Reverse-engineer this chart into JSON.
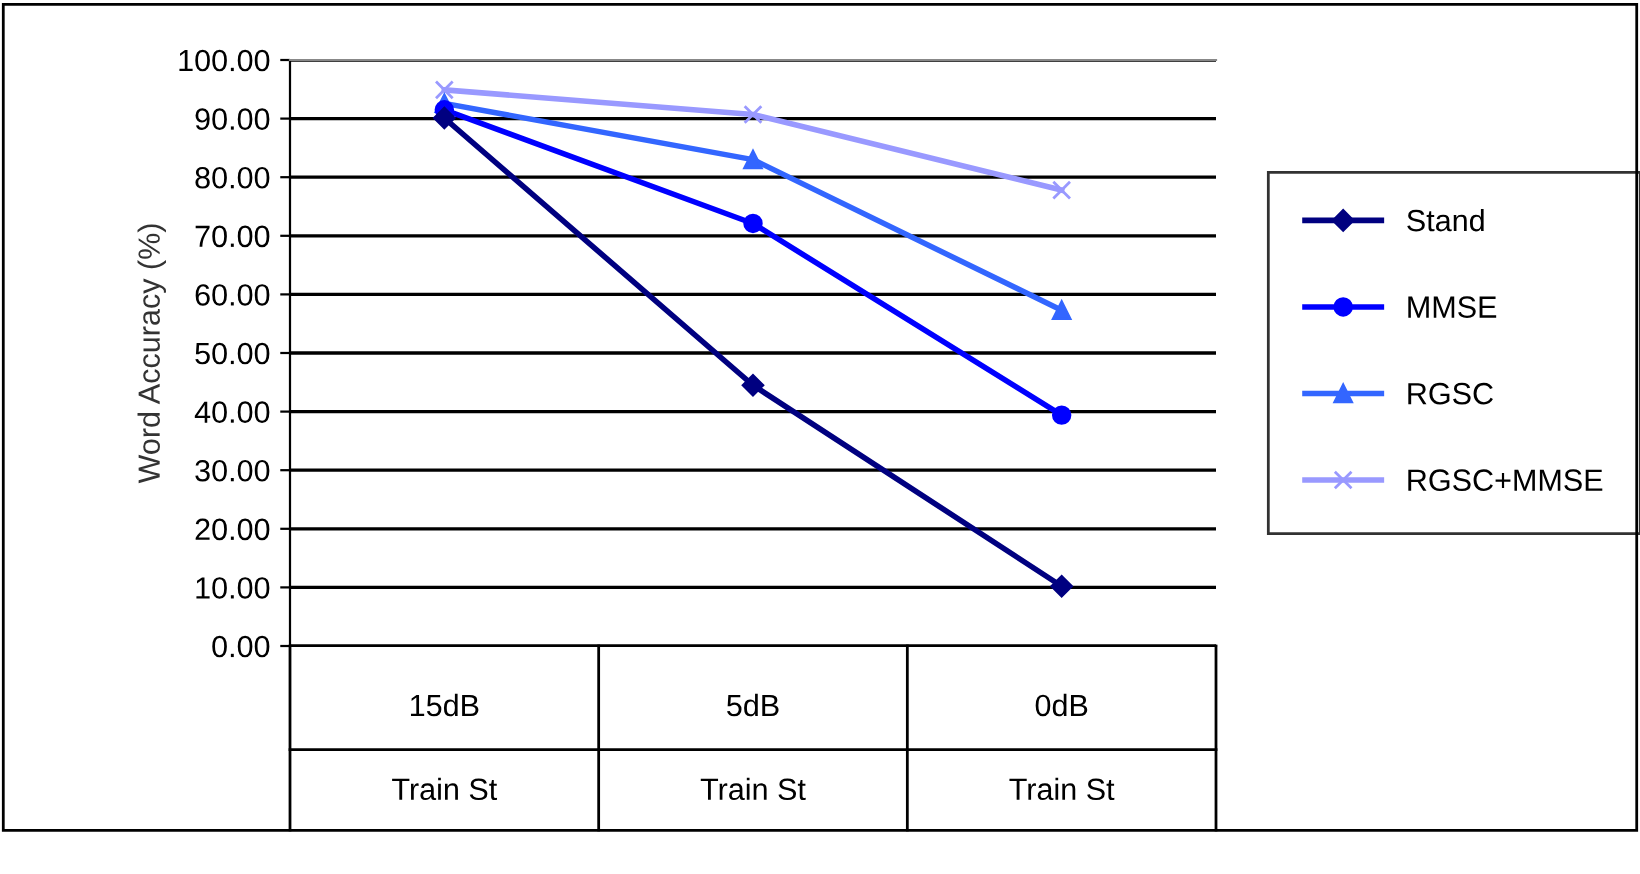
{
  "chart_data": {
    "type": "line",
    "ylabel": "Word Accuracy (%)",
    "categories": [
      "15dB\nTrain St",
      "5dB\nTrain St",
      "0dB\nTrain St"
    ],
    "series": [
      {
        "name": "Stand",
        "color": "#000080",
        "marker": "diamond",
        "values": [
          90.1,
          44.5,
          10.2
        ]
      },
      {
        "name": "MMSE",
        "color": "#0000ff",
        "marker": "circle",
        "values": [
          91.5,
          72.1,
          39.4
        ]
      },
      {
        "name": "RGSC",
        "color": "#3366ff",
        "marker": "triangle",
        "values": [
          92.6,
          83.0,
          57.3
        ]
      },
      {
        "name": "RGSC+MMSE",
        "color": "#9999ff",
        "marker": "cross",
        "values": [
          94.9,
          90.7,
          77.8
        ]
      }
    ],
    "ylim": [
      0,
      100
    ],
    "yticks": [
      {
        "value": 0,
        "label": "0.00"
      },
      {
        "value": 10,
        "label": "10.00"
      },
      {
        "value": 20,
        "label": "20.00"
      },
      {
        "value": 30,
        "label": "30.00"
      },
      {
        "value": 40,
        "label": "40.00"
      },
      {
        "value": 50,
        "label": "50.00"
      },
      {
        "value": 60,
        "label": "60.00"
      },
      {
        "value": 70,
        "label": "70.00"
      },
      {
        "value": 80,
        "label": "80.00"
      },
      {
        "value": 90,
        "label": "90.00"
      },
      {
        "value": 100,
        "label": "100.00"
      }
    ],
    "grid": "y",
    "legend": "right",
    "line_style": "solid"
  }
}
